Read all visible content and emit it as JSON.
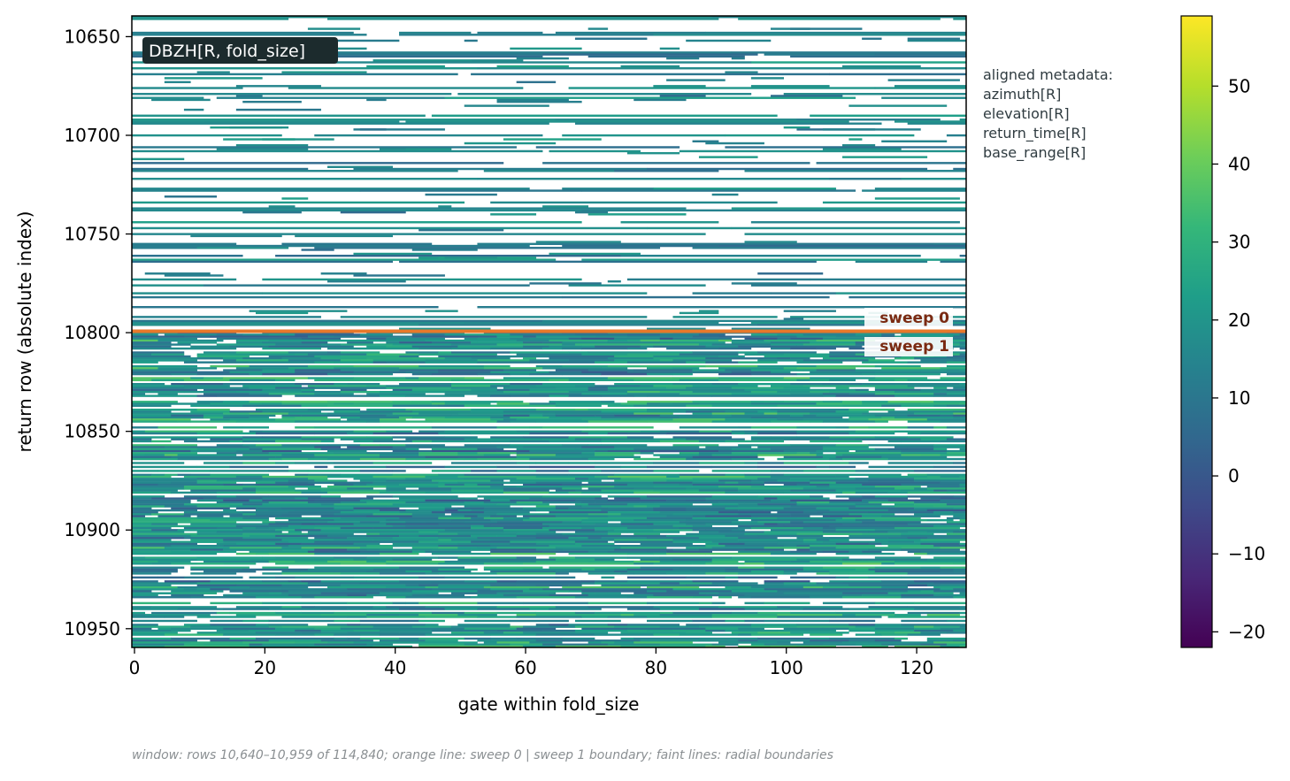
{
  "chart_data": {
    "type": "heatmap",
    "field": "DBZH[R, fold_size]",
    "xlabel": "gate within fold_size",
    "ylabel": "return row (absolute index)",
    "x_range": [
      0,
      128
    ],
    "y_range": [
      10640,
      10960
    ],
    "y_inverted": true,
    "x_ticks": [
      0,
      20,
      40,
      60,
      80,
      100,
      120
    ],
    "y_ticks": [
      10650,
      10700,
      10750,
      10800,
      10850,
      10900,
      10950
    ],
    "colorbar": {
      "range": [
        -22,
        59
      ],
      "ticks": [
        -20,
        -10,
        0,
        10,
        20,
        30,
        40,
        50
      ],
      "colormap": [
        "#440154",
        "#482777",
        "#3e4a89",
        "#31688e",
        "#26828e",
        "#1f9e89",
        "#35b779",
        "#6ece58",
        "#b5de2b",
        "#fde725"
      ]
    },
    "sweep_boundary": {
      "row": 10800,
      "color": "#e8782a",
      "label_above": "sweep 0",
      "label_below": "sweep 1",
      "label_color": "#7a2a12"
    },
    "sweeps": [
      {
        "name": "sweep 0",
        "rows": [
          10640,
          10799
        ],
        "coverage": "sparse",
        "typical_dbz": [
          5,
          30
        ]
      },
      {
        "name": "sweep 1",
        "rows": [
          10800,
          10959
        ],
        "coverage": "dense",
        "typical_dbz": [
          5,
          45
        ]
      }
    ],
    "metadata_note": [
      "aligned metadata:",
      "azimuth[R]",
      "elevation[R]",
      "return_time[R]",
      "base_range[R]"
    ],
    "caption": "window: rows 10,640–10,959 of 114,840; orange line: sweep 0 | sweep 1 boundary; faint lines: radial boundaries",
    "grid": false
  }
}
